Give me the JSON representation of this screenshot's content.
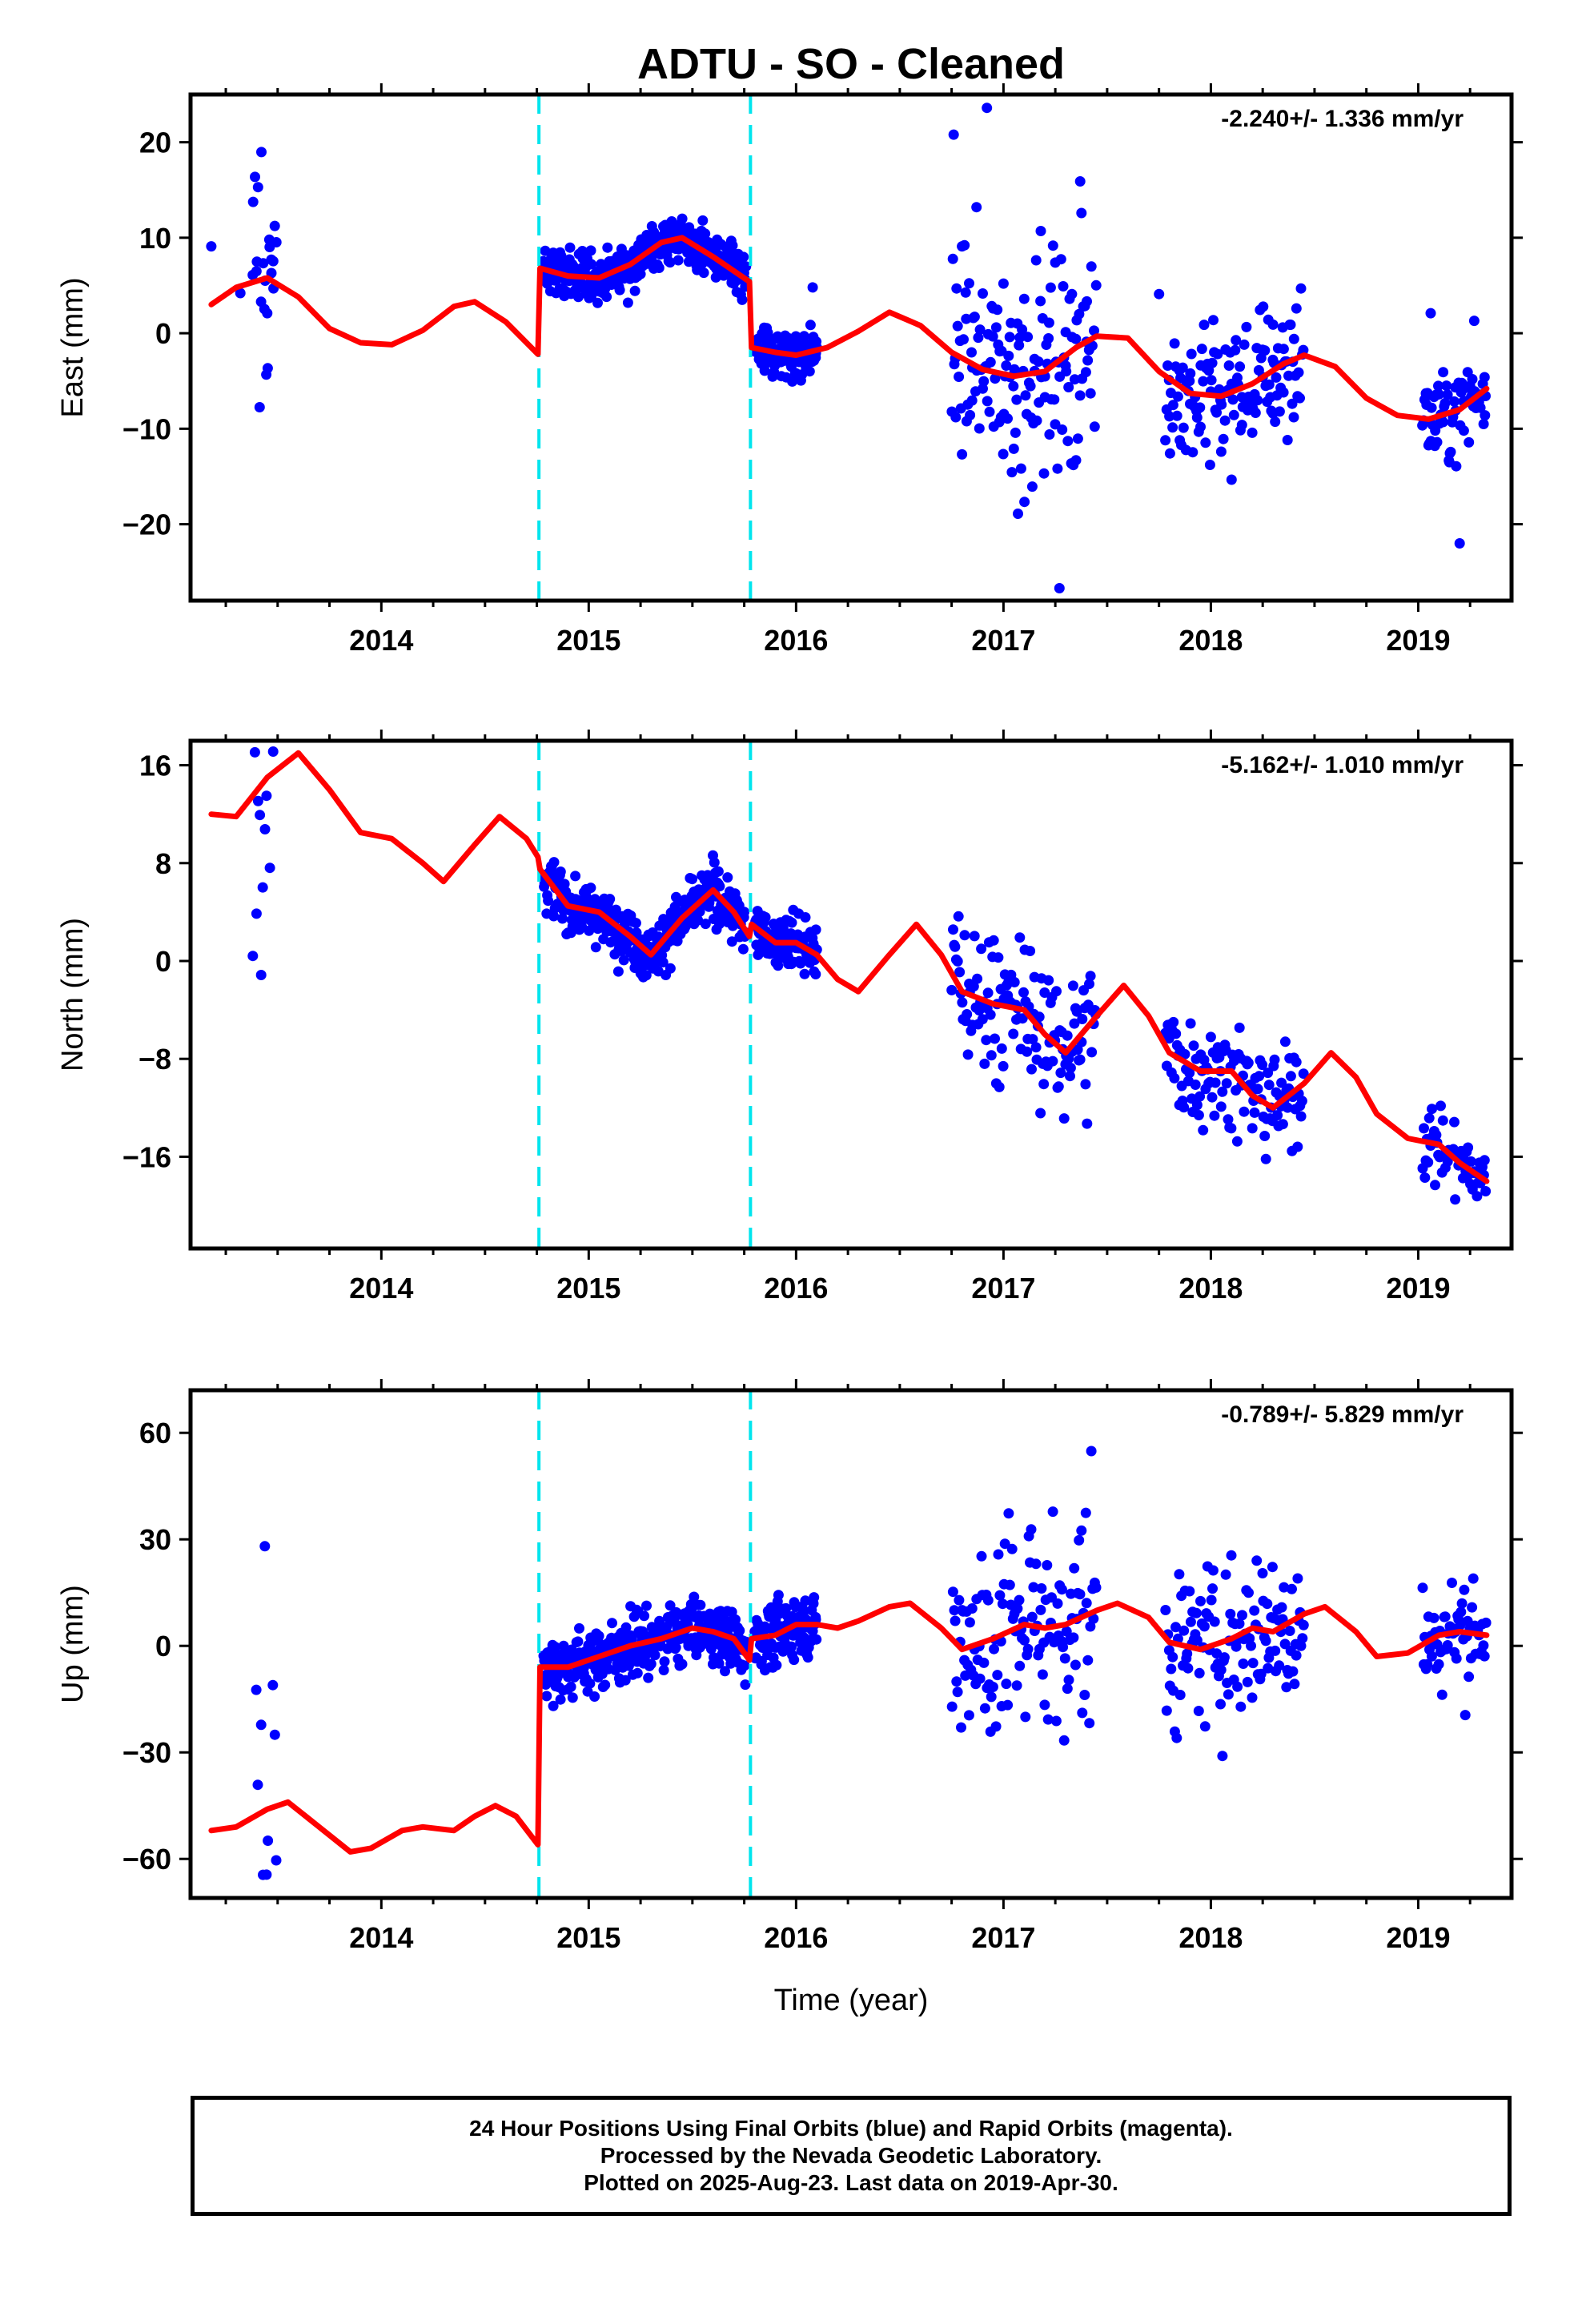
{
  "title": "ADTU  - SO - Cleaned",
  "xlabel": "Time (year)",
  "footer": {
    "line1": "24 Hour Positions Using Final Orbits (blue) and Rapid Orbits (magenta).",
    "line2": "Processed by the Nevada Geodetic Laboratory.",
    "line3": "Plotted on 2025-Aug-23. Last data on 2019-Apr-30."
  },
  "colors": {
    "data": "#0000ff",
    "model": "#ff0000",
    "offset": "#00e5ee",
    "frame": "#000000"
  },
  "chart_data": [
    {
      "type": "scatter",
      "component": "East",
      "ylabel": "East (mm)",
      "rate": "-2.240+/- 1.336 mm/yr",
      "xlim": [
        2013.08,
        2019.45
      ],
      "ylim": [
        -28,
        25
      ],
      "xticks": [
        "2014",
        "2015",
        "2016",
        "2017",
        "2018",
        "2019"
      ],
      "yticks": [
        "-20",
        "-10",
        "0",
        "10",
        "20"
      ],
      "ytick_values": [
        -20,
        -10,
        0,
        10,
        20
      ],
      "offsets": [
        2014.76,
        2015.78
      ],
      "model_x": [
        2013.18,
        2013.3,
        2013.45,
        2013.6,
        2013.75,
        2013.9,
        2014.05,
        2014.2,
        2014.35,
        2014.45,
        2014.6,
        2014.755,
        2014.765,
        2014.9,
        2015.05,
        2015.2,
        2015.35,
        2015.45,
        2015.6,
        2015.775,
        2015.785,
        2015.9,
        2016.0,
        2016.15,
        2016.3,
        2016.45,
        2016.6,
        2016.75,
        2016.9,
        2017.05,
        2017.2,
        2017.35,
        2017.45,
        2017.6,
        2017.75,
        2017.9,
        2018.05,
        2018.2,
        2018.35,
        2018.45,
        2018.6,
        2018.75,
        2018.9,
        2019.05,
        2019.2,
        2019.33
      ],
      "model_y": [
        3,
        4.8,
        5.8,
        3.8,
        0.5,
        -1,
        -1.2,
        0.3,
        2.8,
        3.3,
        1.2,
        -2.2,
        6.8,
        6,
        5.8,
        7.2,
        9.5,
        10,
        8,
        5.4,
        -1.5,
        -2,
        -2.3,
        -1.5,
        0.2,
        2.2,
        0.8,
        -2,
        -3.8,
        -4.5,
        -4,
        -1.5,
        -0.3,
        -0.5,
        -4,
        -6.3,
        -6.6,
        -5.3,
        -3.2,
        -2.3,
        -3.5,
        -6.8,
        -8.6,
        -9,
        -8,
        -5.8
      ],
      "points": [
        [
          2013.18,
          9.1
        ],
        [
          2013.32,
          4.2
        ],
        [
          2013.38,
          6.1
        ],
        [
          2013.4,
          7.5
        ],
        [
          2013.42,
          3.3
        ],
        [
          2013.44,
          5.5
        ],
        [
          2013.45,
          2.1
        ],
        [
          2013.46,
          9.8
        ],
        [
          2013.47,
          6.3
        ],
        [
          2013.48,
          4.7
        ],
        [
          2014.8,
          5.2
        ],
        [
          2014.9,
          6.8
        ],
        [
          2014.95,
          3.8
        ],
        [
          2015.05,
          5.5
        ],
        [
          2015.15,
          7.1
        ],
        [
          2015.25,
          6.2
        ],
        [
          2015.3,
          8.5
        ],
        [
          2015.35,
          9.4
        ],
        [
          2015.4,
          11.2
        ],
        [
          2015.45,
          10.1
        ],
        [
          2015.5,
          8.8
        ],
        [
          2015.55,
          11.8
        ],
        [
          2015.6,
          8.1
        ],
        [
          2015.65,
          6.9
        ],
        [
          2015.7,
          5.2
        ],
        [
          2015.74,
          3.5
        ],
        [
          2015.8,
          -1.2
        ],
        [
          2015.85,
          -2.5
        ],
        [
          2015.9,
          -3.1
        ],
        [
          2015.95,
          -1.8
        ],
        [
          2016.0,
          -4.2
        ],
        [
          2016.05,
          -2.9
        ],
        [
          2016.08,
          4.8
        ],
        [
          2016.1,
          -1.5
        ],
        [
          2016.76,
          20.8
        ],
        [
          2016.77,
          -8.8
        ],
        [
          2016.8,
          9.1
        ],
        [
          2016.82,
          1.5
        ],
        [
          2016.85,
          -3.6
        ],
        [
          2016.87,
          13.2
        ],
        [
          2016.9,
          -5.8
        ],
        [
          2016.92,
          23.6
        ],
        [
          2016.95,
          2.6
        ],
        [
          2016.98,
          -9.3
        ],
        [
          2017.0,
          5.2
        ],
        [
          2017.03,
          -0.4
        ],
        [
          2017.05,
          -12.1
        ],
        [
          2017.07,
          -18.9
        ],
        [
          2017.1,
          3.6
        ],
        [
          2017.15,
          -2.7
        ],
        [
          2017.18,
          10.7
        ],
        [
          2017.2,
          -6.7
        ],
        [
          2017.22,
          1.1
        ],
        [
          2017.25,
          7.4
        ],
        [
          2017.27,
          -26.7
        ],
        [
          2017.3,
          -3.4
        ],
        [
          2017.33,
          4.1
        ],
        [
          2017.35,
          -13.3
        ],
        [
          2017.37,
          15.9
        ],
        [
          2017.4,
          -0.9
        ],
        [
          2017.75,
          4.1
        ],
        [
          2017.8,
          -8.7
        ],
        [
          2017.85,
          -11.2
        ],
        [
          2017.9,
          -7.4
        ],
        [
          2017.95,
          -9.8
        ],
        [
          2018.0,
          -6.1
        ],
        [
          2018.05,
          -12.4
        ],
        [
          2018.1,
          -5.3
        ],
        [
          2018.15,
          -9.6
        ],
        [
          2018.2,
          -7.7
        ],
        [
          2018.25,
          -4.6
        ],
        [
          2018.3,
          -8.4
        ],
        [
          2018.3,
          0.9
        ],
        [
          2018.35,
          -6.2
        ],
        [
          2018.4,
          -8.8
        ],
        [
          2019.04,
          -7.5
        ],
        [
          2019.06,
          2.1
        ],
        [
          2019.08,
          -11.8
        ],
        [
          2019.1,
          -6.4
        ],
        [
          2019.12,
          -9.3
        ],
        [
          2019.15,
          -13.5
        ],
        [
          2019.18,
          -8.1
        ],
        [
          2019.2,
          -22
        ],
        [
          2019.22,
          -10.2
        ],
        [
          2019.25,
          -5.5
        ],
        [
          2019.27,
          1.3
        ],
        [
          2019.3,
          -7.8
        ],
        [
          2019.32,
          -4.6
        ]
      ]
    },
    {
      "type": "scatter",
      "component": "North",
      "ylabel": "North (mm)",
      "rate": "-5.162+/- 1.010 mm/yr",
      "xlim": [
        2013.08,
        2019.45
      ],
      "ylim": [
        -23.5,
        18
      ],
      "xticks": [
        "2014",
        "2015",
        "2016",
        "2017",
        "2018",
        "2019"
      ],
      "yticks": [
        "16",
        "8",
        "0",
        "-8",
        "-16"
      ],
      "ytick_values": [
        16,
        8,
        0,
        -8,
        -16
      ],
      "offsets": [
        2014.76,
        2015.78
      ],
      "model_x": [
        2013.18,
        2013.3,
        2013.45,
        2013.6,
        2013.75,
        2013.9,
        2014.05,
        2014.2,
        2014.3,
        2014.45,
        2014.57,
        2014.7,
        2014.755,
        2014.765,
        2014.9,
        2015.05,
        2015.2,
        2015.3,
        2015.45,
        2015.6,
        2015.7,
        2015.775,
        2015.785,
        2015.9,
        2016.0,
        2016.1,
        2016.2,
        2016.3,
        2016.45,
        2016.58,
        2016.7,
        2016.8,
        2016.95,
        2017.1,
        2017.2,
        2017.3,
        2017.45,
        2017.58,
        2017.7,
        2017.8,
        2017.95,
        2018.1,
        2018.2,
        2018.3,
        2018.45,
        2018.58,
        2018.7,
        2018.8,
        2018.95,
        2019.1,
        2019.2,
        2019.33
      ],
      "model_y": [
        12,
        11.8,
        15,
        17,
        14,
        10.5,
        10,
        8,
        6.5,
        9.5,
        11.8,
        10,
        8.5,
        7.5,
        4.5,
        4,
        2,
        0.5,
        3.5,
        5.8,
        4,
        2,
        3,
        1.5,
        1.5,
        0.5,
        -1.5,
        -2.5,
        0.5,
        3,
        0.5,
        -2.5,
        -3.5,
        -4,
        -6,
        -7.5,
        -4.5,
        -2,
        -4.5,
        -7.5,
        -9,
        -9,
        -11,
        -12,
        -10,
        -7.5,
        -9.5,
        -12.5,
        -14.5,
        -15,
        -16.5,
        -18
      ]
    },
    {
      "type": "scatter",
      "component": "Up",
      "ylabel": "Up (mm)",
      "rate": "-0.789+/- 5.829 mm/yr",
      "xlim": [
        2013.08,
        2019.45
      ],
      "ylim": [
        -71,
        72
      ],
      "xticks": [
        "2014",
        "2015",
        "2016",
        "2017",
        "2018",
        "2019"
      ],
      "yticks": [
        "60",
        "30",
        "0",
        "-30",
        "-60"
      ],
      "ytick_values": [
        60,
        30,
        0,
        -30,
        -60
      ],
      "offsets": [
        2014.76,
        2015.78
      ],
      "model_x": [
        2013.18,
        2013.3,
        2013.45,
        2013.55,
        2013.7,
        2013.85,
        2013.95,
        2014.1,
        2014.2,
        2014.35,
        2014.45,
        2014.55,
        2014.65,
        2014.755,
        2014.765,
        2014.9,
        2015.05,
        2015.2,
        2015.35,
        2015.5,
        2015.6,
        2015.7,
        2015.775,
        2015.785,
        2015.9,
        2016.0,
        2016.1,
        2016.2,
        2016.3,
        2016.45,
        2016.55,
        2016.7,
        2016.8,
        2016.95,
        2017.1,
        2017.2,
        2017.3,
        2017.45,
        2017.55,
        2017.7,
        2017.8,
        2017.95,
        2018.1,
        2018.2,
        2018.3,
        2018.45,
        2018.55,
        2018.7,
        2018.8,
        2018.95,
        2019.1,
        2019.2,
        2019.33
      ],
      "model_y": [
        -52,
        -51,
        -46,
        -44,
        -51,
        -58,
        -57,
        -52,
        -51,
        -52,
        -48,
        -45,
        -48,
        -56,
        -6,
        -6,
        -3,
        0,
        2,
        5,
        4,
        2,
        -4,
        2,
        3,
        6,
        6,
        5,
        7,
        11,
        12,
        5,
        -1,
        2,
        6,
        5,
        6,
        10,
        12,
        8,
        1,
        -1,
        2,
        5,
        4,
        9,
        11,
        4,
        -3,
        -2,
        3,
        4,
        3
      ]
    }
  ]
}
